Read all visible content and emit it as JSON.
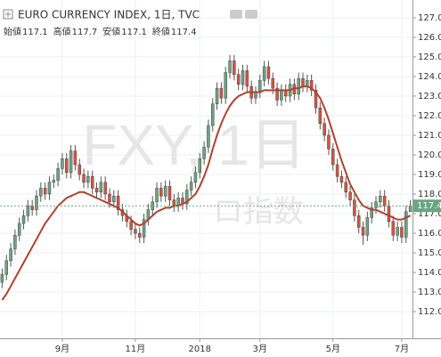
{
  "chart_data": {
    "type": "candlestick",
    "title": "EURO CURRENCY INDEX, 1日, TVC",
    "ohlc_labels": [
      "始値",
      "高値",
      "安値",
      "終値"
    ],
    "watermark": [
      "FXY, 1日",
      "ロ指数"
    ],
    "up_color": "#6ba583",
    "down_color": "#d75442",
    "candles": [
      [
        113.5,
        114.2,
        113.2,
        113.9
      ],
      [
        113.9,
        114.9,
        113.6,
        114.6
      ],
      [
        114.6,
        115.5,
        114.3,
        115.2
      ],
      [
        115.2,
        116.2,
        114.9,
        115.9
      ],
      [
        115.9,
        116.8,
        115.6,
        116.5
      ],
      [
        116.5,
        117.2,
        116.2,
        116.9
      ],
      [
        116.9,
        117.7,
        116.6,
        117.4
      ],
      [
        117.4,
        117.7,
        116.9,
        117.2
      ],
      [
        117.2,
        118.2,
        116.9,
        117.9
      ],
      [
        117.9,
        118.6,
        117.6,
        118.3
      ],
      [
        118.3,
        118.6,
        117.7,
        118.0
      ],
      [
        118.0,
        118.9,
        117.7,
        118.6
      ],
      [
        118.6,
        119.0,
        118.3,
        118.7
      ],
      [
        118.7,
        119.6,
        118.4,
        119.3
      ],
      [
        119.3,
        120.1,
        119.0,
        119.8
      ],
      [
        119.8,
        120.1,
        118.8,
        119.1
      ],
      [
        119.1,
        120.5,
        118.8,
        120.2
      ],
      [
        120.2,
        120.5,
        119.2,
        119.5
      ],
      [
        119.5,
        119.8,
        118.7,
        119.0
      ],
      [
        119.0,
        119.3,
        118.3,
        118.6
      ],
      [
        118.6,
        119.2,
        118.3,
        118.9
      ],
      [
        118.9,
        119.2,
        118.0,
        118.3
      ],
      [
        118.3,
        118.6,
        117.8,
        118.1
      ],
      [
        118.1,
        118.9,
        117.8,
        118.6
      ],
      [
        118.6,
        118.9,
        117.7,
        118.0
      ],
      [
        118.0,
        118.3,
        117.3,
        117.6
      ],
      [
        117.6,
        118.2,
        117.3,
        117.9
      ],
      [
        117.9,
        118.2,
        116.9,
        117.2
      ],
      [
        117.2,
        117.5,
        116.6,
        116.9
      ],
      [
        116.9,
        117.2,
        116.3,
        116.6
      ],
      [
        116.6,
        116.9,
        115.9,
        116.2
      ],
      [
        116.2,
        116.5,
        115.7,
        116.0
      ],
      [
        116.0,
        116.3,
        115.5,
        115.8
      ],
      [
        115.8,
        117.0,
        115.5,
        116.7
      ],
      [
        116.7,
        117.5,
        116.4,
        117.2
      ],
      [
        117.2,
        117.9,
        116.9,
        117.6
      ],
      [
        117.6,
        118.6,
        117.3,
        118.3
      ],
      [
        118.3,
        118.6,
        117.6,
        117.9
      ],
      [
        117.9,
        118.7,
        117.6,
        118.4
      ],
      [
        118.4,
        118.7,
        117.4,
        117.7
      ],
      [
        117.7,
        118.0,
        117.1,
        117.4
      ],
      [
        117.4,
        118.1,
        117.1,
        117.8
      ],
      [
        117.8,
        118.1,
        117.2,
        117.5
      ],
      [
        117.5,
        118.5,
        117.2,
        118.2
      ],
      [
        118.2,
        118.9,
        117.9,
        118.6
      ],
      [
        118.6,
        119.4,
        118.3,
        119.1
      ],
      [
        119.1,
        120.1,
        118.8,
        119.8
      ],
      [
        119.8,
        120.7,
        119.5,
        120.4
      ],
      [
        120.4,
        121.8,
        120.1,
        121.5
      ],
      [
        121.5,
        122.9,
        121.2,
        122.6
      ],
      [
        122.6,
        123.7,
        122.3,
        123.4
      ],
      [
        123.4,
        123.7,
        122.6,
        122.9
      ],
      [
        122.9,
        124.5,
        122.6,
        124.2
      ],
      [
        124.2,
        125.1,
        123.9,
        124.8
      ],
      [
        124.8,
        125.1,
        123.8,
        124.1
      ],
      [
        124.1,
        124.4,
        123.3,
        123.6
      ],
      [
        123.6,
        124.6,
        123.3,
        124.3
      ],
      [
        124.3,
        124.6,
        123.2,
        123.5
      ],
      [
        123.5,
        123.8,
        122.6,
        122.9
      ],
      [
        122.9,
        123.5,
        122.6,
        123.2
      ],
      [
        123.2,
        124.1,
        122.9,
        123.8
      ],
      [
        123.8,
        124.8,
        123.5,
        124.5
      ],
      [
        124.5,
        124.8,
        123.6,
        123.9
      ],
      [
        123.9,
        124.2,
        123.1,
        123.4
      ],
      [
        123.4,
        123.7,
        122.5,
        122.8
      ],
      [
        122.8,
        123.6,
        122.5,
        123.3
      ],
      [
        123.3,
        123.6,
        122.7,
        123.0
      ],
      [
        123.0,
        123.9,
        122.7,
        123.6
      ],
      [
        123.6,
        123.9,
        122.8,
        123.1
      ],
      [
        123.1,
        124.2,
        122.8,
        123.9
      ],
      [
        123.9,
        124.2,
        123.2,
        123.5
      ],
      [
        123.5,
        124.1,
        123.2,
        123.8
      ],
      [
        123.8,
        124.1,
        123.0,
        123.3
      ],
      [
        123.3,
        123.6,
        122.1,
        122.4
      ],
      [
        122.4,
        122.7,
        121.3,
        121.6
      ],
      [
        121.6,
        121.9,
        120.7,
        121.0
      ],
      [
        121.0,
        121.3,
        120.0,
        120.3
      ],
      [
        120.3,
        120.6,
        119.2,
        119.5
      ],
      [
        119.5,
        119.8,
        118.6,
        118.9
      ],
      [
        118.9,
        119.2,
        118.3,
        118.6
      ],
      [
        118.6,
        118.9,
        117.8,
        118.1
      ],
      [
        118.1,
        118.4,
        117.4,
        117.7
      ],
      [
        117.7,
        118.0,
        116.6,
        116.9
      ],
      [
        116.9,
        117.2,
        116.0,
        116.3
      ],
      [
        116.3,
        116.6,
        115.4,
        115.9
      ],
      [
        115.9,
        117.1,
        115.6,
        116.8
      ],
      [
        116.8,
        117.6,
        116.5,
        117.3
      ],
      [
        117.3,
        117.9,
        117.0,
        117.6
      ],
      [
        117.6,
        118.2,
        117.3,
        117.9
      ],
      [
        117.9,
        118.2,
        117.1,
        117.4
      ],
      [
        117.4,
        117.7,
        116.3,
        116.6
      ],
      [
        116.6,
        116.9,
        115.6,
        115.9
      ],
      [
        115.9,
        116.6,
        115.6,
        116.3
      ],
      [
        116.3,
        116.6,
        115.5,
        115.8
      ],
      [
        115.8,
        117.4,
        115.5,
        117.1
      ],
      [
        117.1,
        117.7,
        117.1,
        117.4
      ]
    ],
    "ma": {
      "color": "#b0412e",
      "values": [
        112.6,
        112.9,
        113.3,
        113.7,
        114.1,
        114.5,
        114.9,
        115.3,
        115.7,
        116.1,
        116.5,
        116.8,
        117.1,
        117.4,
        117.6,
        117.8,
        117.9,
        118.0,
        118.1,
        118.1,
        118.0,
        117.9,
        117.8,
        117.7,
        117.6,
        117.5,
        117.4,
        117.3,
        117.1,
        116.9,
        116.7,
        116.5,
        116.4,
        116.5,
        116.7,
        116.9,
        117.1,
        117.2,
        117.3,
        117.3,
        117.4,
        117.4,
        117.5,
        117.6,
        117.8,
        118.0,
        118.4,
        118.9,
        119.5,
        120.3,
        121.0,
        121.6,
        122.1,
        122.5,
        122.8,
        123.0,
        123.1,
        123.2,
        123.2,
        123.2,
        123.2,
        123.3,
        123.3,
        123.3,
        123.3,
        123.3,
        123.3,
        123.3,
        123.4,
        123.4,
        123.5,
        123.5,
        123.4,
        123.2,
        122.9,
        122.4,
        121.8,
        121.1,
        120.4,
        119.7,
        119.1,
        118.5,
        118.1,
        117.7,
        117.4,
        117.3,
        117.2,
        117.2,
        117.1,
        117.0,
        116.9,
        116.8,
        116.7,
        116.7,
        116.8,
        116.9
      ]
    },
    "xlim": [
      -0.5,
      95.5
    ],
    "xticks": [
      {
        "value": 14,
        "label": "9月"
      },
      {
        "value": 31,
        "label": "11月"
      },
      {
        "value": 46,
        "label": "2018"
      },
      {
        "value": 60,
        "label": "3月"
      },
      {
        "value": 77,
        "label": "5月"
      },
      {
        "value": 93,
        "label": "7月"
      }
    ],
    "ylim": [
      110.64,
      127.45
    ],
    "yticks": [
      {
        "value": 112,
        "label": "112.0"
      },
      {
        "value": 113,
        "label": "113.0"
      },
      {
        "value": 114,
        "label": "114.0"
      },
      {
        "value": 115,
        "label": "115.0"
      },
      {
        "value": 116,
        "label": "116.0"
      },
      {
        "value": 117,
        "label": "117.0"
      },
      {
        "value": 118,
        "label": "118.0"
      },
      {
        "value": 119,
        "label": "119.0"
      },
      {
        "value": 120,
        "label": "120.0"
      },
      {
        "value": 121,
        "label": "121.0"
      },
      {
        "value": 122,
        "label": "122.0"
      },
      {
        "value": 123,
        "label": "123.0"
      },
      {
        "value": 124,
        "label": "124.0"
      },
      {
        "value": 125,
        "label": "125.0"
      },
      {
        "value": 126,
        "label": "126.0"
      },
      {
        "value": 127,
        "label": "127.0"
      }
    ],
    "grid": true
  }
}
